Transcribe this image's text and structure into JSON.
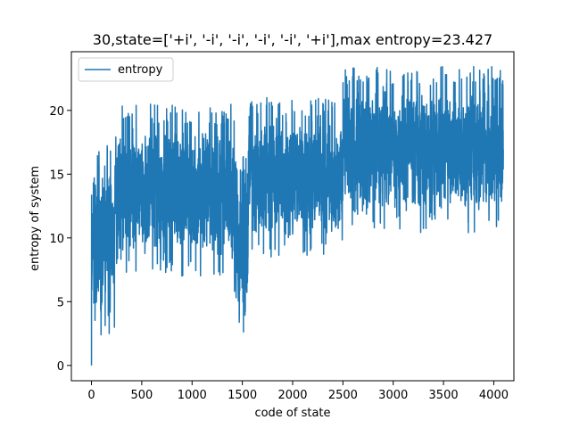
{
  "chart_data": {
    "type": "line",
    "title": "30,state=['+i', '-i', '-i', '-i', '-i', '+i'],max entropy=23.427",
    "xlabel": "code of state",
    "ylabel": "entropy of system",
    "xlim": [
      -200,
      4200
    ],
    "ylim": [
      -1.2,
      24.6
    ],
    "xticks": [
      0,
      500,
      1000,
      1500,
      2000,
      2500,
      3000,
      3500,
      4000
    ],
    "yticks": [
      0,
      5,
      10,
      15,
      20
    ],
    "grid": false,
    "legend_position": "upper-left",
    "line_color": "#1f77b4",
    "series": [
      {
        "name": "entropy",
        "points_count": 4096,
        "min": 0,
        "max": 23.427,
        "profile": [
          {
            "x_from": 0,
            "x_to": 230,
            "low": 2.3,
            "high": 17.3
          },
          {
            "x_from": 230,
            "x_to": 1420,
            "low": 7.0,
            "high": 20.5
          },
          {
            "x_from": 1420,
            "x_to": 1560,
            "low": 1.9,
            "high": 16.5
          },
          {
            "x_from": 1560,
            "x_to": 2500,
            "low": 8.4,
            "high": 21.0
          },
          {
            "x_from": 2500,
            "x_to": 4096,
            "low": 10.4,
            "high": 23.427
          }
        ]
      }
    ]
  }
}
